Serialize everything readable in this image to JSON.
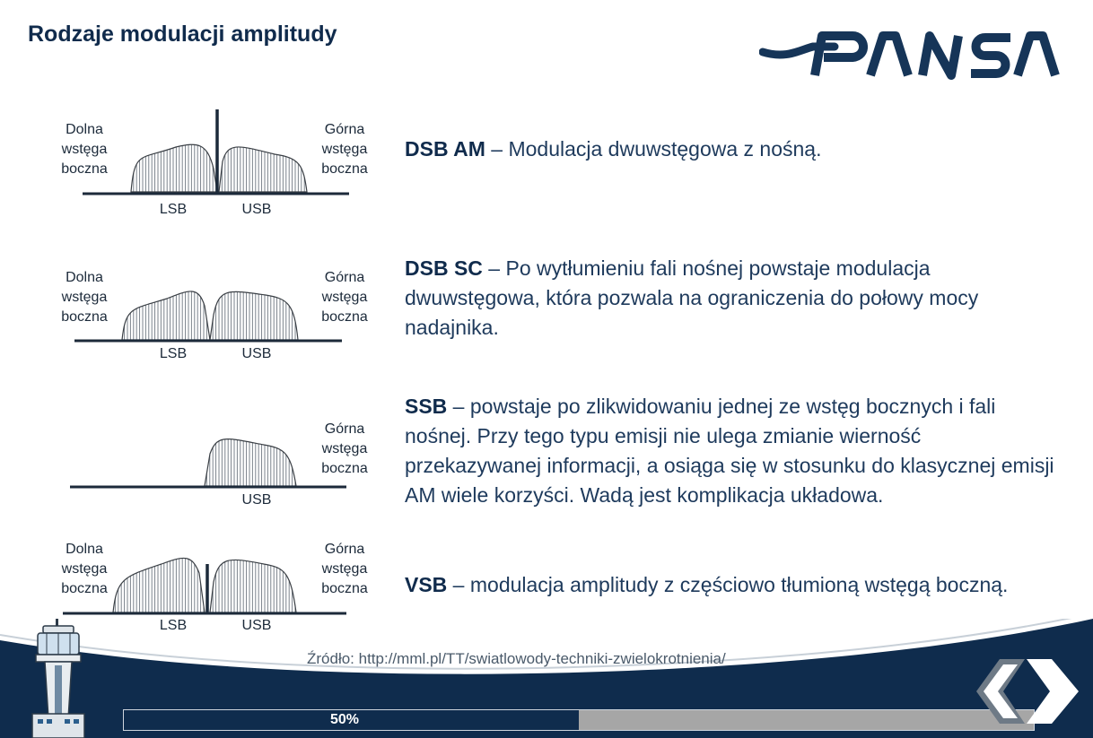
{
  "slide": {
    "title": "Rodzaje modulacji amplitudy",
    "logo_text": "PANSA"
  },
  "diagrams": [
    {
      "left_label": "Dolna\nwstęga\nboczna",
      "right_label": "Górna\nwstęga\nboczna",
      "axis_labels": [
        "LSB",
        "USB"
      ]
    },
    {
      "left_label": "Dolna\nwstęga\nboczna",
      "right_label": "Górna\nwstęga\nboczna",
      "axis_labels": [
        "LSB",
        "USB"
      ]
    },
    {
      "left_label": "",
      "right_label": "Górna\nwstęga\nboczna",
      "axis_labels": [
        "",
        "USB"
      ]
    },
    {
      "left_label": "Dolna\nwstęga\nboczna",
      "right_label": "Górna\nwstęga\nboczna",
      "axis_labels": [
        "LSB",
        "USB"
      ]
    }
  ],
  "descriptions": [
    {
      "abbr": "DSB AM",
      "text": " – Modulacja dwuwstęgowa z nośną."
    },
    {
      "abbr": "DSB SC",
      "text": " – Po wytłumieniu fali nośnej powstaje modulacja dwuwstęgowa, która pozwala na ograniczenia do połowy mocy nadajnika."
    },
    {
      "abbr": "SSB",
      "text": " – powstaje po zlikwidowaniu jednej ze wstęg bocznych i fali nośnej. Przy tego typu emisji nie ulega zmianie wierność przekazywanej informacji, a osiąga się w stosunku do klasycznej emisji AM wiele korzyści. Wadą jest komplikacja układowa."
    },
    {
      "abbr": "VSB",
      "text": " – modulacja amplitudy z częściowo tłumioną wstęgą boczną."
    }
  ],
  "source": "Źródło: http://mml.pl/TT/swiatlowody-techniki-zwielokrotnienia/",
  "progress": {
    "percent_label": "50%",
    "fraction": 0.5
  },
  "colors": {
    "navy": "#102b4c",
    "text": "#1e3a5c",
    "progress_bg": "#a6a6a6"
  },
  "nav": {
    "prev_icon": "chevron-left-icon",
    "next_icon": "chevron-right-icon"
  }
}
